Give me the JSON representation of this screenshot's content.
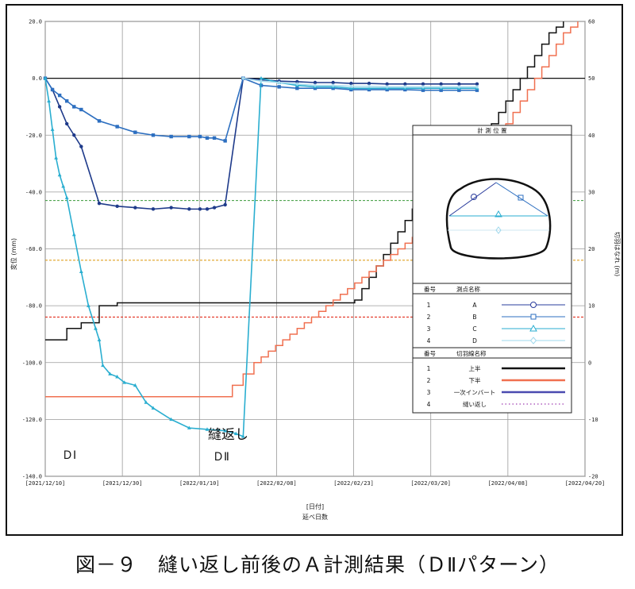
{
  "caption": "図－９　縫い返し前後のＡ計測結果（ＤⅡパターン）",
  "chart_data": {
    "type": "line",
    "xlabel": "[日付]",
    "xlabel2": "延べ日数",
    "ylabel_left": "変位 (mm)",
    "ylabel_right": "切羽はなれ (m)",
    "x_ticks": [
      "[2021/12/10]",
      "[2021/12/30]",
      "[2022/01/10]",
      "[2022/02/08]",
      "[2022/02/23]",
      "[2022/03/20]",
      "[2022/04/08]",
      "[2022/04/20]"
    ],
    "y_left_ticks": [
      "20.0",
      "0.0",
      "-20.0",
      "-40.0",
      "-60.0",
      "-80.0",
      "-100.0",
      "-120.0",
      "-140.0"
    ],
    "y_left_range": [
      -140,
      20
    ],
    "y_right_ticks": [
      "60",
      "50",
      "40",
      "30",
      "20",
      "10",
      "0",
      "-10",
      "-20"
    ],
    "y_right_range": [
      -20,
      60
    ],
    "grid": true,
    "annotations": {
      "before": "ＤⅠ",
      "event": "縫返し",
      "after": "ＤⅡ"
    },
    "reference_lines": [
      {
        "y": -43,
        "color": "#3a9a3a"
      },
      {
        "y": -64,
        "color": "#e0a020"
      },
      {
        "y": -84,
        "color": "#e23020"
      }
    ],
    "legend": {
      "panel_title": "計 測 位 置",
      "points_header": [
        "番号",
        "測点名称"
      ],
      "points": [
        {
          "no": "1",
          "name": "A",
          "marker": "circle",
          "color": "#2a3c9c"
        },
        {
          "no": "2",
          "name": "B",
          "marker": "square",
          "color": "#2d6fc0"
        },
        {
          "no": "3",
          "name": "C",
          "marker": "triangle",
          "color": "#2aaed0"
        },
        {
          "no": "4",
          "name": "D",
          "marker": "diamond",
          "color": "#9fd8ec"
        }
      ],
      "faces_header": [
        "番号",
        "切羽線名称"
      ],
      "faces": [
        {
          "no": "1",
          "name": "上半",
          "color": "#111111",
          "style": "solid"
        },
        {
          "no": "2",
          "name": "下半",
          "color": "#f07050",
          "style": "solid"
        },
        {
          "no": "3",
          "name": "一次インバート",
          "color": "#4a4ab0",
          "style": "solid"
        },
        {
          "no": "4",
          "name": "縫い返し",
          "color": "#b060c0",
          "style": "dotted"
        }
      ]
    },
    "series": [
      {
        "name": "A",
        "color": "#1e3a8a",
        "marker": "circle",
        "x": [
          0,
          2,
          4,
          6,
          8,
          10,
          15,
          20,
          25,
          30,
          35,
          40,
          43,
          45,
          47,
          50,
          55,
          60,
          65,
          70,
          75,
          80,
          85,
          90,
          95,
          100,
          105,
          110,
          115,
          120
        ],
        "y": [
          0,
          -4,
          -10,
          -16,
          -20,
          -24,
          -44,
          -45,
          -45.5,
          -46,
          -45.5,
          -46,
          -46,
          -46,
          -45.5,
          -44.5,
          0,
          -0.5,
          -1,
          -1.2,
          -1.5,
          -1.5,
          -1.8,
          -1.8,
          -2,
          -2,
          -2,
          -2,
          -2,
          -2
        ]
      },
      {
        "name": "B",
        "color": "#2d6fc0",
        "marker": "square",
        "x": [
          0,
          2,
          4,
          6,
          8,
          10,
          15,
          20,
          25,
          30,
          35,
          40,
          43,
          45,
          47,
          50,
          55,
          60,
          65,
          70,
          75,
          80,
          85,
          90,
          95,
          100,
          105,
          110,
          115,
          120
        ],
        "y": [
          0,
          -4,
          -6,
          -8,
          -10,
          -11,
          -15,
          -17,
          -19,
          -20,
          -20.5,
          -20.5,
          -20.5,
          -21,
          -21,
          -22,
          0,
          -2.5,
          -3,
          -3.5,
          -3.5,
          -3.5,
          -4,
          -4,
          -4,
          -4,
          -4.2,
          -4.2,
          -4.2,
          -4.2
        ]
      },
      {
        "name": "C",
        "color": "#2aaed0",
        "marker": "triangle",
        "x": [
          0,
          1,
          2,
          3,
          4,
          5,
          6,
          8,
          10,
          12,
          14,
          15,
          16,
          18,
          20,
          22,
          25,
          28,
          30,
          35,
          40,
          45,
          50,
          53,
          55,
          60,
          65,
          70,
          75,
          80,
          85,
          90,
          95,
          100,
          105,
          110,
          115,
          120
        ],
        "y": [
          0,
          -8,
          -18,
          -28,
          -34,
          -38,
          -42,
          -55,
          -68,
          -80,
          -88,
          -92,
          -101,
          -104,
          -105,
          -107,
          -108,
          -114,
          -116,
          -120,
          -123,
          -123.5,
          -124,
          -125,
          -126,
          0,
          -1.5,
          -2.5,
          -3,
          -3,
          -3.5,
          -3.5,
          -3.5,
          -3.5,
          -3.5,
          -3.5,
          -3.5,
          -3.5
        ]
      },
      {
        "name": "D",
        "color": "#a8dcee",
        "marker": "diamond",
        "x": [
          55,
          60,
          65,
          70,
          75,
          80,
          85,
          90,
          95,
          100,
          105,
          110,
          115,
          120
        ],
        "y": [
          0,
          -1,
          -1.5,
          -2,
          -2.5,
          -2.5,
          -2.8,
          -2.8,
          -3,
          -3,
          -3,
          -3,
          -3,
          -3
        ]
      },
      {
        "name": "上半",
        "color": "#111111",
        "axis": "right",
        "step": true,
        "x": [
          0,
          6,
          10,
          15,
          20,
          30,
          40,
          50,
          55,
          60,
          70,
          80,
          84,
          86,
          88,
          90,
          92,
          94,
          96,
          98,
          100,
          102,
          104,
          106,
          108,
          110,
          112,
          114,
          116,
          118,
          120,
          122,
          124,
          126,
          128,
          130,
          132,
          134,
          136,
          138,
          140,
          142,
          144
        ],
        "y": [
          4,
          6,
          7,
          10,
          10.5,
          10.5,
          10.5,
          10.5,
          10.5,
          10.5,
          10.5,
          10.5,
          10.5,
          11,
          13,
          15,
          17,
          19,
          21,
          23,
          25,
          27,
          29,
          30,
          31,
          32,
          33,
          34,
          35,
          36,
          38,
          40,
          42,
          44,
          46,
          48,
          50,
          52,
          54,
          56,
          58,
          59,
          60
        ]
      },
      {
        "name": "下半",
        "color": "#f07050",
        "axis": "right",
        "step": true,
        "x": [
          0,
          50,
          52,
          55,
          58,
          60,
          62,
          64,
          66,
          68,
          70,
          72,
          74,
          76,
          78,
          80,
          82,
          84,
          86,
          88,
          90,
          92,
          94,
          96,
          98,
          100,
          102,
          104,
          106,
          108,
          110,
          112,
          114,
          116,
          118,
          120,
          122,
          124,
          126,
          128,
          130,
          132,
          134,
          136,
          138,
          140,
          142,
          144,
          146,
          148
        ],
        "y": [
          -6,
          -6,
          -4,
          -2,
          0,
          1,
          2,
          3,
          4,
          5,
          6,
          7,
          8,
          9,
          10,
          11,
          12,
          13,
          14,
          15,
          16,
          17,
          18,
          19,
          20,
          21,
          22,
          23,
          24,
          25,
          26,
          27,
          28,
          30,
          32,
          34,
          36,
          38,
          40,
          42,
          44,
          46,
          48,
          50,
          52,
          54,
          56,
          58,
          59,
          60
        ]
      }
    ]
  }
}
